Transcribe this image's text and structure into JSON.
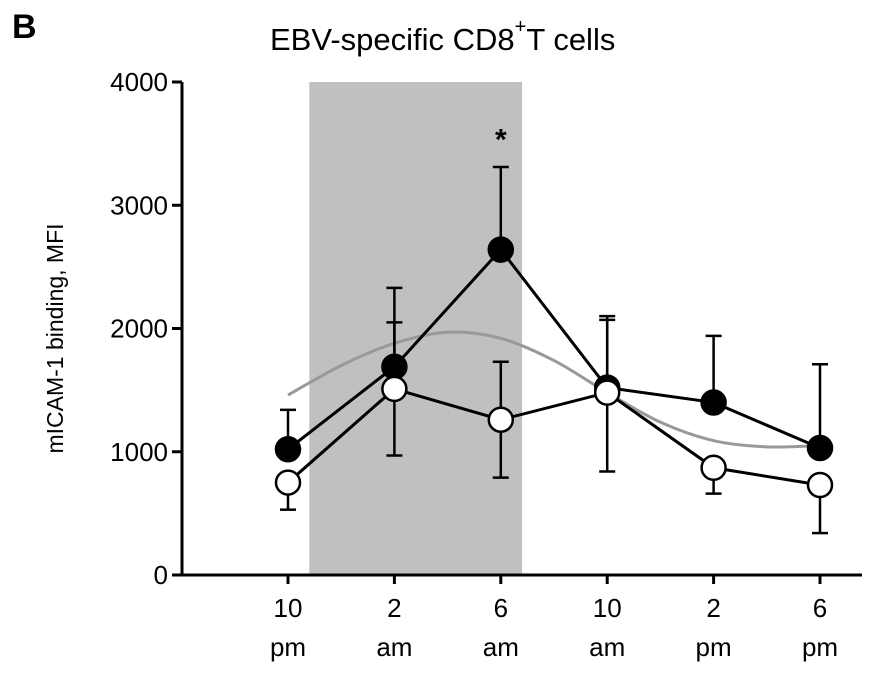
{
  "panel_label": "B",
  "title": {
    "prefix": "EBV-specific CD8",
    "superscript": "+",
    "suffix": "T cells"
  },
  "chart_data": {
    "type": "line",
    "title": "EBV-specific CD8+T cells",
    "ylabel": "mICAM-1 binding, MFI",
    "xlabel": "",
    "ylim": [
      0,
      4000
    ],
    "yticks": [
      0,
      1000,
      2000,
      3000,
      4000
    ],
    "categories": [
      {
        "line1": "10",
        "line2": "pm"
      },
      {
        "line1": "2",
        "line2": "am"
      },
      {
        "line1": "6",
        "line2": "am"
      },
      {
        "line1": "10",
        "line2": "am"
      },
      {
        "line1": "2",
        "line2": "pm"
      },
      {
        "line1": "6",
        "line2": "pm"
      }
    ],
    "shaded_region": {
      "from_index": 0.2,
      "to_index": 2.2,
      "color": "#c0c0c0"
    },
    "series": [
      {
        "marker": "filled-circle",
        "color": "#000000",
        "values": [
          1020,
          1690,
          2640,
          1520,
          1400,
          1030
        ],
        "error_upper": [
          1340,
          2330,
          3310,
          2100,
          1940,
          1710
        ],
        "error_lower": null
      },
      {
        "marker": "open-circle",
        "color": "#000000",
        "values": [
          750,
          1510,
          1260,
          1480,
          870,
          730
        ],
        "error_upper": [
          null,
          2050,
          1730,
          2070,
          null,
          null
        ],
        "error_lower": [
          530,
          970,
          790,
          840,
          660,
          340
        ]
      },
      {
        "marker": "none",
        "color": "#999999",
        "fit": "smooth-curve",
        "x": [
          0,
          0.5,
          1,
          1.5,
          2,
          2.5,
          3,
          3.5,
          4,
          4.5,
          5
        ],
        "values": [
          1460,
          1700,
          1880,
          1970,
          1920,
          1740,
          1480,
          1240,
          1090,
          1040,
          1050
        ]
      }
    ],
    "annotations": [
      {
        "text": "*",
        "category_index": 2,
        "y": 3550
      }
    ]
  }
}
